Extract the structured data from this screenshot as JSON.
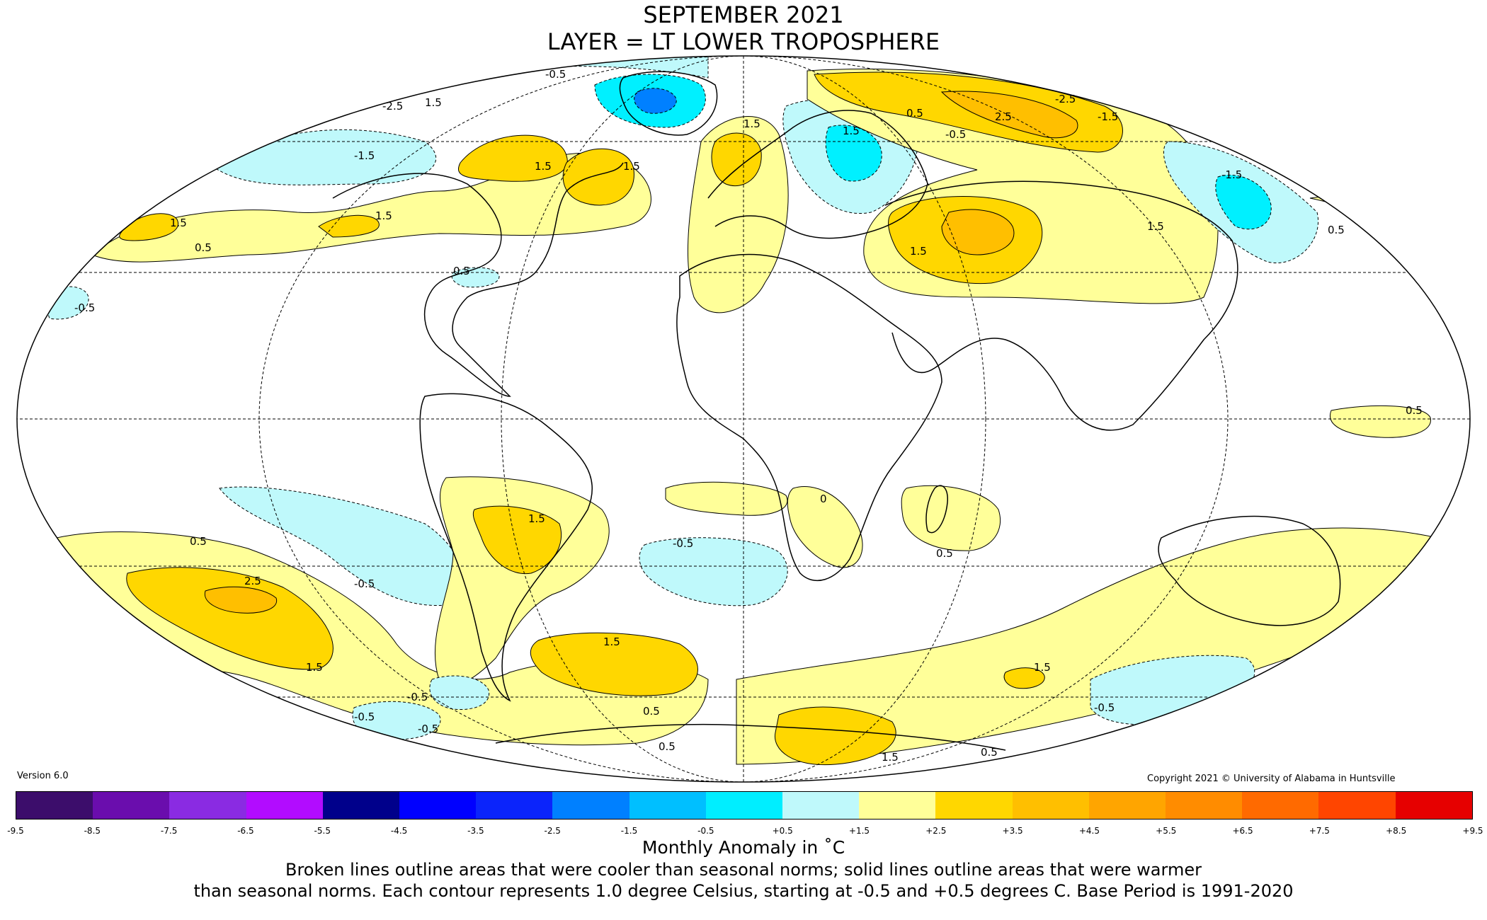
{
  "title": {
    "line1": "SEPTEMBER 2021",
    "line2": "LAYER = LT LOWER TROPOSPHERE"
  },
  "version": "Version 6.0",
  "copyright": "Copyright 2021 © University of Alabama in Huntsville",
  "colors": {
    "land_outline": "#000000",
    "cool_light": "#bff9fb",
    "cool_mid": "#00f0ff",
    "cool_deep": "#00c8ff",
    "cool_blue": "#0080ff",
    "warm_light": "#ffff99",
    "warm_mid": "#ffd700",
    "warm_deep": "#ffbf00"
  },
  "colorbar": {
    "colors": [
      "#3c0d6b",
      "#6a0dad",
      "#8a2be2",
      "#b20cff",
      "#00008b",
      "#0000ff",
      "#0b24fb",
      "#0080ff",
      "#00bfff",
      "#00eeff",
      "#bff9fb",
      "#ffffff",
      "#ffff99",
      "#ffd700",
      "#ffbf00",
      "#ffa500",
      "#ff8c00",
      "#ff6a00",
      "#ff4500",
      "#e60000",
      "#b30000"
    ],
    "ticks": [
      "-9.5",
      "-8.5",
      "-7.5",
      "-6.5",
      "-5.5",
      "-4.5",
      "-3.5",
      "-2.5",
      "-1.5",
      "-0.5",
      "+0.5",
      "+1.5",
      "+2.5",
      "+3.5",
      "+4.5",
      "+5.5",
      "+6.5",
      "+7.5",
      "+8.5",
      "+9.5"
    ]
  },
  "unit_label": "Monthly Anomaly in ˚C",
  "caption": {
    "line1": "Broken lines outline areas that were cooler than seasonal norms; solid lines outline areas that were warmer",
    "line2": "than seasonal norms. Each contour represents 1.0 degree Celsius, starting at -0.5 and +0.5 degrees C. Base Period is 1991-2020"
  },
  "contour_labels": [
    "-0.5",
    "-2.5",
    "-1.5",
    "1.5",
    "0.5",
    "2.5",
    "0"
  ]
}
